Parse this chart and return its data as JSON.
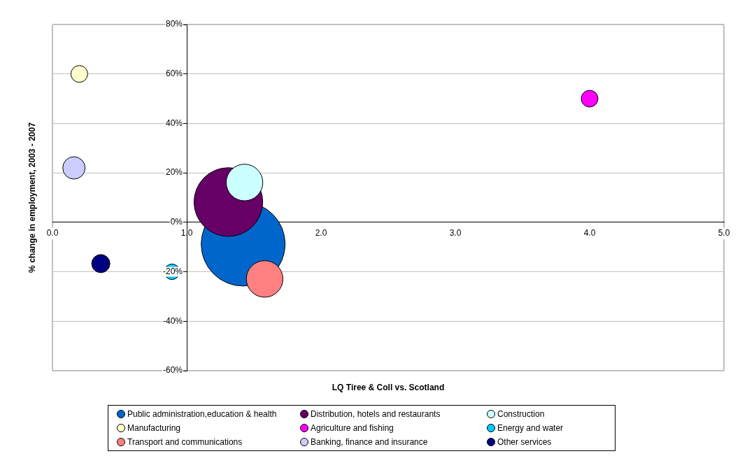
{
  "chart_data": {
    "type": "bubble",
    "xlabel": "LQ Tiree & Coll vs. Scotland",
    "ylabel": "% change in employment, 2003 - 2007",
    "xlim": [
      0,
      5
    ],
    "xticks": [
      {
        "value": 0,
        "label": "0.0"
      },
      {
        "value": 1,
        "label": "1.0"
      },
      {
        "value": 2,
        "label": "2.0"
      },
      {
        "value": 3,
        "label": "3.0"
      },
      {
        "value": 4,
        "label": "4.0"
      },
      {
        "value": 5,
        "label": "5.0"
      }
    ],
    "ylim": [
      -60,
      80
    ],
    "yticks": [
      {
        "value": -60,
        "label": "-60%"
      },
      {
        "value": -40,
        "label": "-40%"
      },
      {
        "value": -20,
        "label": "-20%"
      },
      {
        "value": 0,
        "label": "0%"
      },
      {
        "value": 20,
        "label": "20%"
      },
      {
        "value": 40,
        "label": "40%"
      },
      {
        "value": 60,
        "label": "60%"
      },
      {
        "value": 80,
        "label": "80%"
      }
    ],
    "grid": "y",
    "legend": "bottom",
    "series": [
      {
        "name": "Public administration,education & health",
        "color": "#0066cc",
        "x": [
          1.42
        ],
        "values": [
          -8.8
        ],
        "sizes": [
          1
        ]
      },
      {
        "name": "Distribution, hotels and restaurants",
        "color": "#660066",
        "x": [
          1.31
        ],
        "values": [
          8.2
        ],
        "sizes": [
          0.67
        ]
      },
      {
        "name": "Construction",
        "color": "#ccffff",
        "x": [
          1.43
        ],
        "values": [
          16.1
        ],
        "sizes": [
          0.19
        ]
      },
      {
        "name": "Manufacturing",
        "color": "#ffffcc",
        "x": [
          0.2
        ],
        "values": [
          60
        ],
        "sizes": [
          0.04
        ]
      },
      {
        "name": "Agriculture and fishing",
        "color": "#ff00ff",
        "x": [
          4.0
        ],
        "values": [
          50
        ],
        "sizes": [
          0.04
        ]
      },
      {
        "name": "Energy and water",
        "color": "#00ccff",
        "x": [
          0.89
        ],
        "values": [
          -20
        ],
        "sizes": [
          0.034
        ]
      },
      {
        "name": "Transport and communications",
        "color": "#ff8080",
        "x": [
          1.58
        ],
        "values": [
          -22.9
        ],
        "sizes": [
          0.19
        ]
      },
      {
        "name": "Banking, finance and insurance",
        "color": "#ccccff",
        "x": [
          0.16
        ],
        "values": [
          22
        ],
        "sizes": [
          0.071
        ]
      },
      {
        "name": "Other services",
        "color": "#000080",
        "x": [
          0.36
        ],
        "values": [
          -16.7
        ],
        "sizes": [
          0.047
        ]
      }
    ]
  }
}
